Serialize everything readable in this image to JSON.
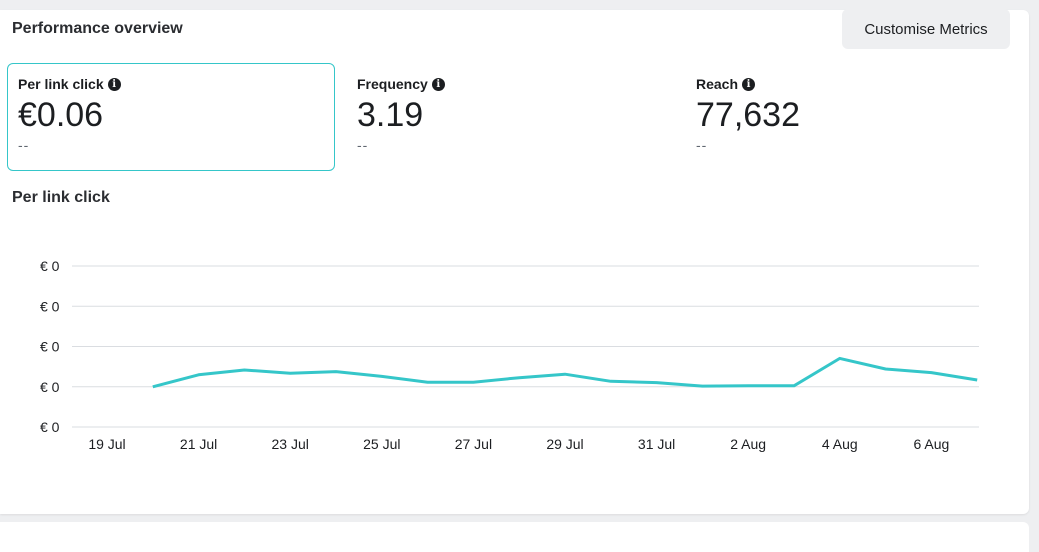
{
  "header": {
    "title": "Performance overview",
    "customise_label": "Customise Metrics"
  },
  "metrics": [
    {
      "label": "Per link click",
      "value": "€0.06",
      "sub": "--",
      "selected": true
    },
    {
      "label": "Frequency",
      "value": "3.19",
      "sub": "--",
      "selected": false
    },
    {
      "label": "Reach",
      "value": "77,632",
      "sub": "--",
      "selected": false
    }
  ],
  "colors": {
    "accent": "#35c6c9",
    "grid": "#dadde1"
  },
  "chart_data": {
    "type": "line",
    "title": "Per link click",
    "xlabel": "",
    "ylabel": "",
    "y_tick_labels": [
      "€ 0",
      "€ 0",
      "€ 0",
      "€ 0",
      "€ 0"
    ],
    "x_tick_labels": [
      "19 Jul",
      "21 Jul",
      "23 Jul",
      "25 Jul",
      "27 Jul",
      "29 Jul",
      "31 Jul",
      "2 Aug",
      "4 Aug",
      "6 Aug"
    ],
    "ylim": [
      0.04,
      0.09
    ],
    "grid": true,
    "legend": "none",
    "x": [
      "20 Jul",
      "21 Jul",
      "22 Jul",
      "23 Jul",
      "24 Jul",
      "25 Jul",
      "26 Jul",
      "27 Jul",
      "28 Jul",
      "29 Jul",
      "30 Jul",
      "31 Jul",
      "1 Aug",
      "2 Aug",
      "3 Aug",
      "4 Aug",
      "5 Aug",
      "6 Aug",
      "7 Aug"
    ],
    "series": [
      {
        "values": [
          0.0525,
          0.0562,
          0.0577,
          0.0567,
          0.0572,
          0.0557,
          0.0539,
          0.0539,
          0.0553,
          0.0564,
          0.0542,
          0.0538,
          0.0527,
          0.0528,
          0.0528,
          0.0613,
          0.058,
          0.0569,
          0.0546
        ]
      }
    ]
  }
}
